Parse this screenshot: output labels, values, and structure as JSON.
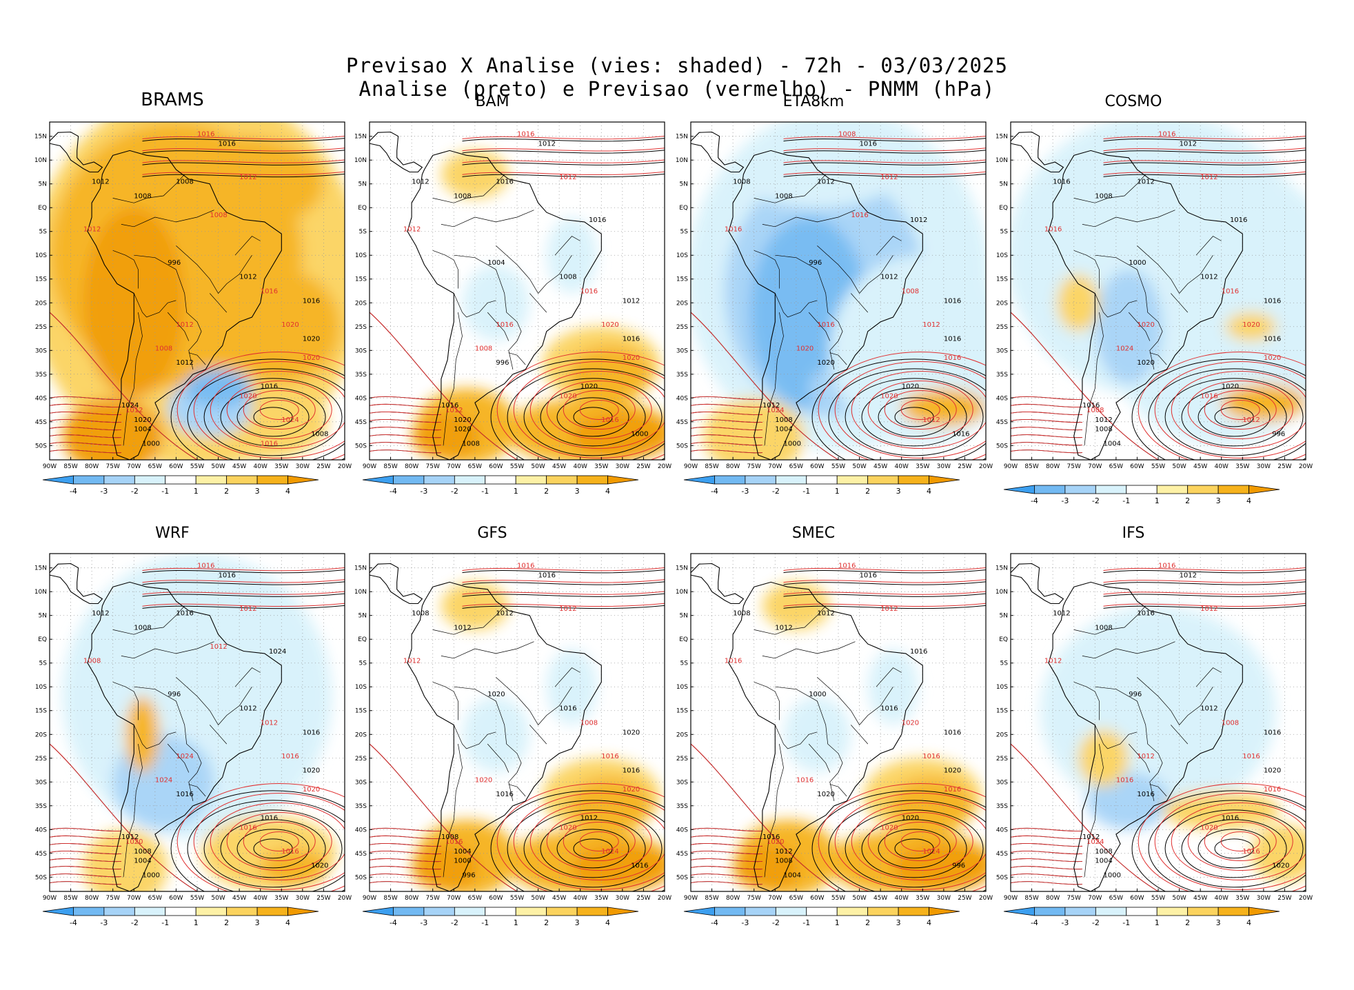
{
  "header": {
    "line1": "Previsao X Analise (vies: shaded) - 72h - 03/03/2025",
    "line2": "Analise (preto) e Previsao (vermelho) - PNMM (hPa)"
  },
  "lat_labels": [
    "15N",
    "10N",
    "5N",
    "EQ",
    "5S",
    "10S",
    "15S",
    "20S",
    "25S",
    "30S",
    "35S",
    "40S",
    "45S",
    "50S"
  ],
  "lon_labels": [
    "90W",
    "85W",
    "80W",
    "75W",
    "70W",
    "65W",
    "60W",
    "55W",
    "50W",
    "45W",
    "40W",
    "35W",
    "30W",
    "25W",
    "20W"
  ],
  "colorbar": {
    "labels": [
      "-4",
      "-3",
      "-2",
      "-1",
      "1",
      "2",
      "3",
      "4"
    ],
    "colors": [
      "#3c9ff0",
      "#72b9f2",
      "#a6d3f7",
      "#d8f2fb",
      "#ffffff",
      "#fdf1a6",
      "#fbd35e",
      "#f6b21c",
      "#f19a00"
    ]
  },
  "colors": {
    "land": "#ffffff",
    "coast": "#000000",
    "forecast_isobar": "#e03030",
    "analysis_isobar": "#000000"
  },
  "panels": [
    {
      "name": "BRAMS",
      "bias": "warm",
      "isobars_black": [
        "1016",
        "1008",
        "1012",
        "1008",
        "1012",
        "1016",
        "1020",
        "1016",
        "1024",
        "1020",
        "1004",
        "1000",
        "996",
        "1008",
        "1012"
      ],
      "isobars_red": [
        "1016",
        "1012",
        "1012",
        "1016",
        "1020",
        "1020",
        "1020",
        "1024",
        "1012",
        "1008",
        "1012",
        "1008",
        "1016"
      ]
    },
    {
      "name": "BAM",
      "bias": "mixed",
      "isobars_black": [
        "1012",
        "1016",
        "1012",
        "1008",
        "1008",
        "1012",
        "1016",
        "1020",
        "1016",
        "1020",
        "1020",
        "1008",
        "1004",
        "1000",
        "996",
        "1016"
      ],
      "isobars_red": [
        "1016",
        "1012",
        "1012",
        "1016",
        "1020",
        "1020",
        "1020",
        "1016",
        "1012",
        "1008",
        "1016"
      ]
    },
    {
      "name": "ETA8km",
      "bias": "cool",
      "isobars_black": [
        "1016",
        "1012",
        "1008",
        "1008",
        "1012",
        "1016",
        "1016",
        "1020",
        "1012",
        "1008",
        "1004",
        "1000",
        "996",
        "1016",
        "1020",
        "1012"
      ],
      "isobars_red": [
        "1008",
        "1012",
        "1016",
        "1008",
        "1012",
        "1016",
        "1020",
        "1012",
        "1024",
        "1020",
        "1016",
        "1016"
      ]
    },
    {
      "name": "COSMO",
      "bias": "cool-light",
      "isobars_black": [
        "1012",
        "1012",
        "1016",
        "1008",
        "1012",
        "1016",
        "1016",
        "1020",
        "1016",
        "1012",
        "1008",
        "1004",
        "1000",
        "996",
        "1020",
        "1016"
      ],
      "isobars_red": [
        "1016",
        "1012",
        "1016",
        "1016",
        "1020",
        "1020",
        "1016",
        "1012",
        "1008",
        "1024",
        "1020"
      ]
    },
    {
      "name": "WRF",
      "bias": "mixed-cool",
      "isobars_black": [
        "1016",
        "1016",
        "1012",
        "1008",
        "1012",
        "1016",
        "1020",
        "1016",
        "1012",
        "1008",
        "1004",
        "1000",
        "996",
        "1020",
        "1016",
        "1024"
      ],
      "isobars_red": [
        "1016",
        "1012",
        "1008",
        "1012",
        "1016",
        "1020",
        "1016",
        "1016",
        "1020",
        "1024",
        "1024",
        "1012"
      ]
    },
    {
      "name": "GFS",
      "bias": "mixed",
      "isobars_black": [
        "1016",
        "1012",
        "1008",
        "1012",
        "1016",
        "1020",
        "1016",
        "1012",
        "1008",
        "1004",
        "1000",
        "996",
        "1020",
        "1016",
        "1016"
      ],
      "isobars_red": [
        "1016",
        "1012",
        "1012",
        "1008",
        "1016",
        "1020",
        "1020",
        "1024",
        "1016",
        "1020"
      ]
    },
    {
      "name": "SMEC",
      "bias": "mixed",
      "isobars_black": [
        "1016",
        "1012",
        "1008",
        "1012",
        "1016",
        "1016",
        "1020",
        "1020",
        "1016",
        "1012",
        "1008",
        "1004",
        "1000",
        "996",
        "1020",
        "1016"
      ],
      "isobars_red": [
        "1016",
        "1012",
        "1016",
        "1020",
        "1016",
        "1016",
        "1020",
        "1024",
        "1020",
        "1016"
      ]
    },
    {
      "name": "IFS",
      "bias": "light",
      "isobars_black": [
        "1012",
        "1016",
        "1012",
        "1008",
        "1012",
        "1016",
        "1020",
        "1016",
        "1012",
        "1008",
        "1004",
        "1000",
        "996",
        "1020",
        "1016"
      ],
      "isobars_red": [
        "1016",
        "1012",
        "1012",
        "1008",
        "1016",
        "1016",
        "1020",
        "1016",
        "1024",
        "1016",
        "1012"
      ]
    }
  ]
}
